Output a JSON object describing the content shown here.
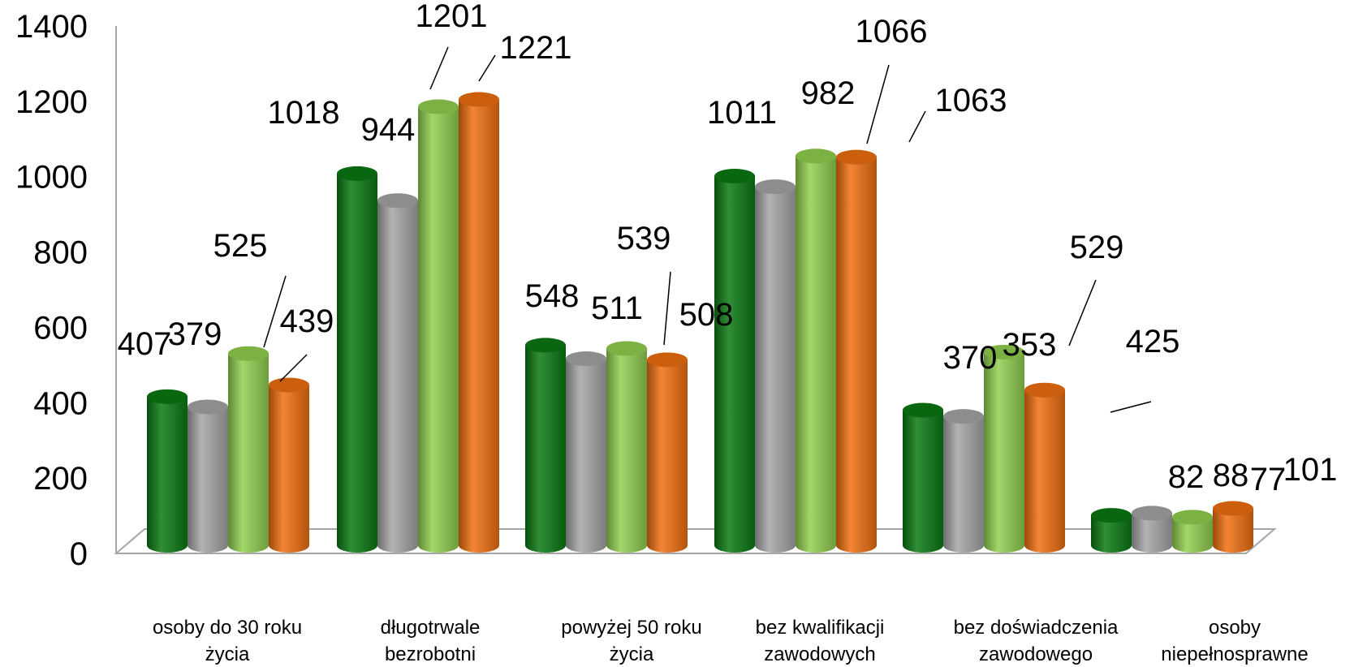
{
  "chart_data": {
    "type": "bar",
    "title": "",
    "xlabel": "",
    "ylabel": "",
    "ylim": [
      0,
      1400
    ],
    "y_ticks": [
      "0",
      "200",
      "400",
      "600",
      "800",
      "1000",
      "1200",
      "1400"
    ],
    "grid": false,
    "legend": "none",
    "categories": [
      [
        "osoby do 30 roku",
        "życia"
      ],
      [
        "długotrwale",
        "bezrobotni"
      ],
      [
        "powyżej 50 roku",
        "życia"
      ],
      [
        "bez kwalifikacji",
        "zawodowych"
      ],
      [
        "bez doświadczenia",
        "zawodowego"
      ],
      [
        "osoby",
        "niepełnosprawne"
      ]
    ],
    "series": [
      {
        "color": "#0a7a12",
        "values": [
          407,
          1018,
          548,
          1011,
          370,
          82
        ]
      },
      {
        "color": "#a6a6a6",
        "values": [
          379,
          944,
          511,
          982,
          353,
          88
        ]
      },
      {
        "color": "#92d050",
        "values": [
          525,
          1201,
          539,
          1066,
          529,
          77
        ]
      },
      {
        "color": "#f07010",
        "values": [
          439,
          1221,
          508,
          1063,
          425,
          101
        ]
      }
    ]
  }
}
